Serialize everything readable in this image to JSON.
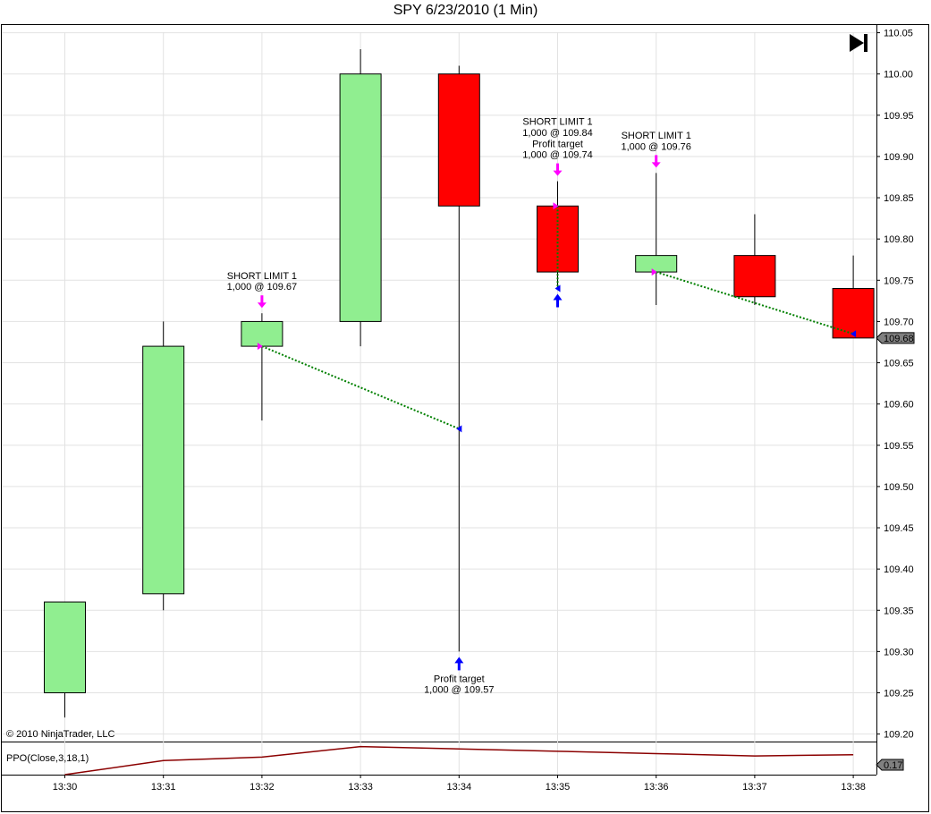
{
  "chart_data": {
    "type": "candlestick",
    "title": "SPY  6/23/2010 (1 Min)",
    "copyright": "© 2010 NinjaTrader, LLC",
    "x_labels": [
      "13:30",
      "13:31",
      "13:32",
      "13:33",
      "13:34",
      "13:35",
      "13:36",
      "13:37",
      "13:38"
    ],
    "y_ticks": [
      "110.05",
      "110.00",
      "109.95",
      "109.90",
      "109.85",
      "109.80",
      "109.75",
      "109.70",
      "109.65",
      "109.60",
      "109.55",
      "109.50",
      "109.45",
      "109.40",
      "109.35",
      "109.30",
      "109.25",
      "109.20"
    ],
    "ylim": [
      109.19,
      110.05
    ],
    "candles": [
      {
        "time": "13:30",
        "open": 109.25,
        "high": 109.36,
        "low": 109.22,
        "close": 109.36
      },
      {
        "time": "13:31",
        "open": 109.37,
        "high": 109.7,
        "low": 109.35,
        "close": 109.67
      },
      {
        "time": "13:32",
        "open": 109.67,
        "high": 109.71,
        "low": 109.58,
        "close": 109.7
      },
      {
        "time": "13:33",
        "open": 109.7,
        "high": 110.03,
        "low": 109.67,
        "close": 110.0
      },
      {
        "time": "13:34",
        "open": 110.0,
        "high": 110.01,
        "low": 109.3,
        "close": 109.84
      },
      {
        "time": "13:35",
        "open": 109.84,
        "high": 109.87,
        "low": 109.74,
        "close": 109.76
      },
      {
        "time": "13:36",
        "open": 109.76,
        "high": 109.88,
        "low": 109.72,
        "close": 109.78
      },
      {
        "time": "13:37",
        "open": 109.78,
        "high": 109.83,
        "low": 109.72,
        "close": 109.73
      },
      {
        "time": "13:38",
        "open": 109.74,
        "high": 109.78,
        "low": 109.68,
        "close": 109.68
      }
    ],
    "up_color": "#90ee90",
    "down_color": "#ff0000",
    "last_price": "109.68",
    "trades": [
      {
        "entry_time": "13:32",
        "entry_price": 109.67,
        "exit_time": "13:34",
        "exit_price": 109.57
      },
      {
        "entry_time": "13:35",
        "entry_price": 109.84,
        "exit_time": "13:35",
        "exit_price": 109.74
      },
      {
        "entry_time": "13:36",
        "entry_price": 109.76,
        "exit_time": "13:38",
        "exit_price": 109.685
      }
    ],
    "annotations": [
      {
        "time": "13:32",
        "side": "sell",
        "lines": [
          "SHORT LIMIT 1",
          "1,000 @ 109.67"
        ]
      },
      {
        "time": "13:34",
        "side": "buy",
        "lines": [
          "Profit target",
          "1,000 @ 109.57"
        ]
      },
      {
        "time": "13:35",
        "side": "sell",
        "lines": [
          "SHORT LIMIT 1",
          "1,000 @ 109.84",
          "Profit target",
          "1,000 @ 109.74"
        ]
      },
      {
        "time": "13:35",
        "side": "buy",
        "lines": []
      },
      {
        "time": "13:36",
        "side": "sell",
        "lines": [
          "SHORT LIMIT 1",
          "1,000 @ 109.76"
        ]
      }
    ],
    "sell_marker_color": "#ff00ff",
    "buy_marker_color": "#0000ff",
    "trade_line_color": "#008000",
    "indicator": {
      "name": "PPO(Close,3,18,1)",
      "last_value": "0.17",
      "color": "#8b0000",
      "values": [
        0.0,
        0.12,
        0.15,
        0.24,
        0.22,
        0.2,
        0.18,
        0.16,
        0.17
      ],
      "ylim": [
        0.0,
        0.26
      ]
    }
  },
  "icons": {
    "jump_to_end": "skip-to-end-icon"
  }
}
